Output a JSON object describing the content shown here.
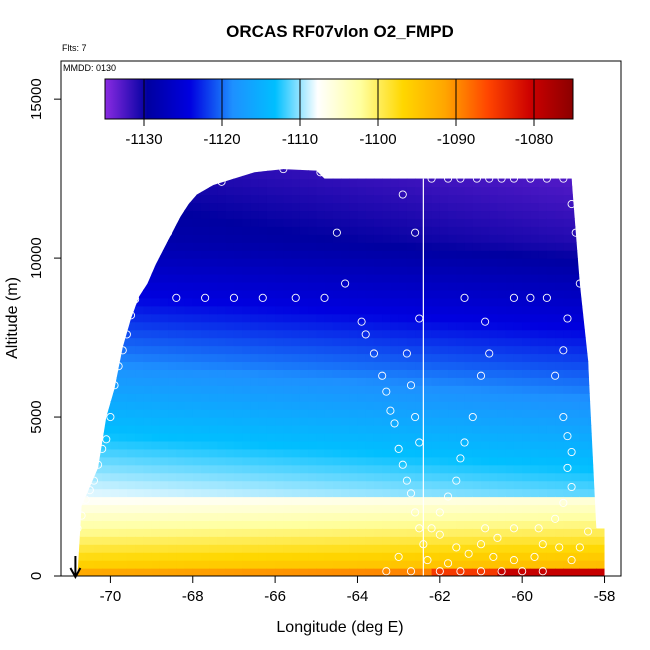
{
  "chart_data": {
    "type": "heatmap",
    "title": "ORCAS RF07vlon O2_FMPD",
    "subtitle_flts": "Flts: 7",
    "subtitle_mmdd": "MMDD: 0130",
    "xlabel": "Longitude (deg E)",
    "ylabel": "Altitude (m)",
    "xlim": [
      -71.2,
      -57.6
    ],
    "ylim": [
      0,
      16200
    ],
    "x_ticks": [
      -70,
      -68,
      -66,
      -64,
      -62,
      -60,
      -58
    ],
    "x_tick_labels": [
      "-70",
      "-68",
      "-66",
      "-64",
      "-62",
      "-60",
      "-58"
    ],
    "y_ticks": [
      0,
      5000,
      10000,
      15000
    ],
    "y_tick_labels": [
      "0",
      "5000",
      "10000",
      "15000"
    ],
    "colorbar": {
      "range": [
        -1135,
        -1075
      ],
      "ticks": [
        -1130,
        -1120,
        -1110,
        -1100,
        -1090,
        -1080
      ],
      "tick_labels": [
        "-1130",
        "-1120",
        "-1110",
        "-1100",
        "-1090",
        "-1080"
      ],
      "colors": [
        "#8a2be2",
        "#0000a0",
        "#0000e0",
        "#1e90ff",
        "#00bfff",
        "#ffffff",
        "#ffffa0",
        "#ffd700",
        "#ffa500",
        "#ff4500",
        "#cc0000",
        "#8b0000"
      ]
    },
    "field_description": "O2 anomaly increasing from about -1130 at high altitude to about -1095 near surface; lowest values east at top, highest values near surface east",
    "domain_top": [
      [
        -70.7,
        2200
      ],
      [
        -70.5,
        2800
      ],
      [
        -70.3,
        3400
      ],
      [
        -70.1,
        5000
      ],
      [
        -69.9,
        5900
      ],
      [
        -69.7,
        7200
      ],
      [
        -69.5,
        8100
      ],
      [
        -69.3,
        8800
      ],
      [
        -69.1,
        9200
      ],
      [
        -68.9,
        9800
      ],
      [
        -68.7,
        10300
      ],
      [
        -68.5,
        10800
      ],
      [
        -68.3,
        11300
      ],
      [
        -68.1,
        11700
      ],
      [
        -67.9,
        12000
      ],
      [
        -67.5,
        12300
      ],
      [
        -67.0,
        12500
      ],
      [
        -66.5,
        12700
      ],
      [
        -65.8,
        12800
      ],
      [
        -65.0,
        12750
      ],
      [
        -64.8,
        12500
      ],
      [
        -58.8,
        12500
      ],
      [
        -58.6,
        9200
      ],
      [
        -58.4,
        6800
      ],
      [
        -58.2,
        1500
      ]
    ],
    "vertical_line_lon": -62.4,
    "marker_lon": -70.85,
    "observations": [
      [
        -70.9,
        400
      ],
      [
        -70.9,
        900
      ],
      [
        -70.8,
        1500
      ],
      [
        -70.7,
        1900
      ],
      [
        -70.6,
        2400
      ],
      [
        -70.5,
        2700
      ],
      [
        -70.4,
        3000
      ],
      [
        -70.3,
        3500
      ],
      [
        -70.2,
        4000
      ],
      [
        -70.1,
        4300
      ],
      [
        -70.0,
        5000
      ],
      [
        -69.9,
        6000
      ],
      [
        -69.8,
        6600
      ],
      [
        -69.7,
        7100
      ],
      [
        -69.6,
        7600
      ],
      [
        -69.5,
        8200
      ],
      [
        -69.4,
        8700
      ],
      [
        -69.3,
        9200
      ],
      [
        -68.6,
        10800
      ],
      [
        -68.1,
        12200
      ],
      [
        -67.3,
        12400
      ],
      [
        -65.8,
        12800
      ],
      [
        -64.9,
        12700
      ],
      [
        -68.4,
        8750
      ],
      [
        -67.7,
        8750
      ],
      [
        -67.0,
        8750
      ],
      [
        -66.3,
        8750
      ],
      [
        -65.5,
        8750
      ],
      [
        -64.8,
        8750
      ],
      [
        -64.3,
        9200
      ],
      [
        -64.5,
        10800
      ],
      [
        -63.9,
        8000
      ],
      [
        -63.8,
        7600
      ],
      [
        -63.6,
        7000
      ],
      [
        -63.4,
        6300
      ],
      [
        -63.3,
        5800
      ],
      [
        -63.2,
        5200
      ],
      [
        -63.1,
        4800
      ],
      [
        -63.0,
        4000
      ],
      [
        -62.9,
        3500
      ],
      [
        -62.8,
        3000
      ],
      [
        -62.7,
        2600
      ],
      [
        -62.6,
        2000
      ],
      [
        -62.5,
        1500
      ],
      [
        -62.4,
        1000
      ],
      [
        -62.9,
        12000
      ],
      [
        -62.6,
        10800
      ],
      [
        -62.5,
        8100
      ],
      [
        -62.8,
        7000
      ],
      [
        -62.7,
        6000
      ],
      [
        -62.6,
        5000
      ],
      [
        -62.5,
        4200
      ],
      [
        -62.2,
        12500
      ],
      [
        -61.8,
        12500
      ],
      [
        -61.5,
        12500
      ],
      [
        -61.1,
        12500
      ],
      [
        -60.8,
        12500
      ],
      [
        -60.5,
        12500
      ],
      [
        -60.2,
        12500
      ],
      [
        -59.8,
        12500
      ],
      [
        -59.4,
        12500
      ],
      [
        -59.0,
        12500
      ],
      [
        -58.8,
        11700
      ],
      [
        -58.7,
        10800
      ],
      [
        -58.6,
        9200
      ],
      [
        -58.9,
        8100
      ],
      [
        -59.0,
        7100
      ],
      [
        -59.2,
        6300
      ],
      [
        -60.9,
        8000
      ],
      [
        -60.8,
        7000
      ],
      [
        -61.4,
        8750
      ],
      [
        -61.0,
        6300
      ],
      [
        -60.2,
        8750
      ],
      [
        -59.8,
        8750
      ],
      [
        -59.4,
        8750
      ],
      [
        -61.2,
        5000
      ],
      [
        -61.4,
        4200
      ],
      [
        -61.5,
        3700
      ],
      [
        -61.6,
        3000
      ],
      [
        -61.8,
        2500
      ],
      [
        -62.0,
        2000
      ],
      [
        -62.2,
        1500
      ],
      [
        -59.0,
        5000
      ],
      [
        -58.9,
        4400
      ],
      [
        -58.8,
        3900
      ],
      [
        -58.9,
        3400
      ],
      [
        -58.8,
        2800
      ],
      [
        -59.0,
        2300
      ],
      [
        -59.2,
        1800
      ],
      [
        -59.6,
        1500
      ],
      [
        -60.2,
        1500
      ],
      [
        -60.6,
        1200
      ],
      [
        -61.0,
        1000
      ],
      [
        -61.6,
        900
      ],
      [
        -62.0,
        1300
      ],
      [
        -60.9,
        1500
      ],
      [
        -59.5,
        1000
      ],
      [
        -59.1,
        900
      ],
      [
        -58.8,
        500
      ],
      [
        -58.6,
        900
      ],
      [
        -58.4,
        1400
      ],
      [
        -62.0,
        150
      ],
      [
        -61.5,
        150
      ],
      [
        -61.0,
        150
      ],
      [
        -60.5,
        150
      ],
      [
        -60.0,
        150
      ],
      [
        -59.5,
        150
      ],
      [
        -62.7,
        150
      ],
      [
        -62.3,
        500
      ],
      [
        -61.8,
        400
      ],
      [
        -61.3,
        700
      ],
      [
        -60.7,
        600
      ],
      [
        -60.2,
        500
      ],
      [
        -59.7,
        600
      ],
      [
        -63.0,
        600
      ],
      [
        -63.3,
        150
      ]
    ]
  }
}
